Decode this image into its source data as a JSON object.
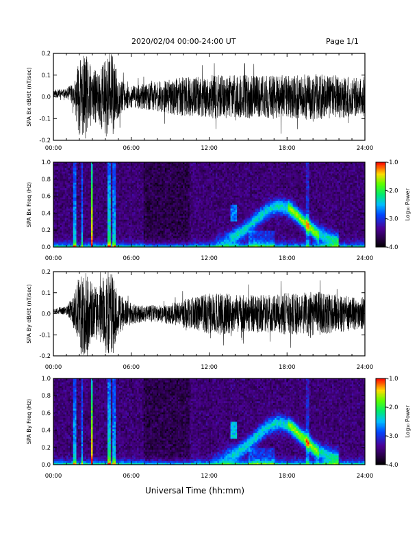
{
  "header": {
    "title": "2020/02/04  00:00-24:00 UT",
    "page": "Page 1/1"
  },
  "xlabel": "Universal Time (hh:mm)",
  "chart_data": [
    {
      "type": "line",
      "panel": "Bx time series",
      "ylabel": "SPA Bx dB/dt (nT/sec)",
      "xlim": [
        0,
        24
      ],
      "ylim": [
        -0.2,
        0.2
      ],
      "xticks": [
        "00:00",
        "06:00",
        "12:00",
        "18:00",
        "24:00"
      ],
      "yticks": [
        "-0.2",
        "-0.1",
        "0.0",
        "0.1",
        "0.2"
      ],
      "envelope": {
        "hours": [
          0,
          1,
          1.6,
          2,
          2.5,
          3,
          3.5,
          4,
          4.5,
          5,
          5.5,
          6,
          7,
          8,
          9,
          10,
          11,
          12,
          13,
          14,
          15,
          16,
          17,
          18,
          19,
          20,
          21,
          22,
          23,
          24
        ],
        "amplitude": [
          0.02,
          0.02,
          0.06,
          0.18,
          0.2,
          0.12,
          0.13,
          0.18,
          0.2,
          0.1,
          0.06,
          0.05,
          0.06,
          0.07,
          0.08,
          0.09,
          0.09,
          0.1,
          0.1,
          0.1,
          0.1,
          0.1,
          0.1,
          0.1,
          0.1,
          0.11,
          0.1,
          0.1,
          0.09,
          0.08
        ]
      }
    },
    {
      "type": "heatmap",
      "panel": "Bx spectrogram",
      "ylabel": "SPA Bx Freq (Hz)",
      "xlim": [
        0,
        24
      ],
      "ylim": [
        0,
        1.0
      ],
      "xticks": [
        "00:00",
        "06:00",
        "12:00",
        "18:00",
        "24:00"
      ],
      "yticks": [
        "0.0",
        "0.2",
        "0.4",
        "0.6",
        "0.8",
        "1.0"
      ],
      "colorbar": {
        "label": "Log₁₀ Power",
        "range": [
          -4.0,
          -1.0
        ],
        "ticks": [
          "-1.0",
          "-2.0",
          "-3.0",
          "-4.0"
        ]
      }
    },
    {
      "type": "line",
      "panel": "By time series",
      "ylabel": "SPA By dB/dt (nT/sec)",
      "xlim": [
        0,
        24
      ],
      "ylim": [
        -0.2,
        0.2
      ],
      "xticks": [
        "00:00",
        "06:00",
        "12:00",
        "18:00",
        "24:00"
      ],
      "yticks": [
        "-0.2",
        "-0.1",
        "0.0",
        "0.1",
        "0.2"
      ],
      "envelope": {
        "hours": [
          0,
          1,
          1.6,
          2,
          2.5,
          3,
          3.5,
          4,
          4.5,
          5,
          5.5,
          6,
          7,
          8,
          9,
          10,
          11,
          12,
          13,
          14,
          15,
          16,
          17,
          18,
          19,
          20,
          21,
          22,
          23,
          24
        ],
        "amplitude": [
          0.015,
          0.02,
          0.08,
          0.2,
          0.2,
          0.14,
          0.12,
          0.2,
          0.2,
          0.1,
          0.07,
          0.05,
          0.04,
          0.04,
          0.05,
          0.07,
          0.08,
          0.1,
          0.1,
          0.09,
          0.09,
          0.09,
          0.09,
          0.1,
          0.1,
          0.11,
          0.1,
          0.09,
          0.08,
          0.07
        ]
      }
    },
    {
      "type": "heatmap",
      "panel": "By spectrogram",
      "ylabel": "SPA By Freq (Hz)",
      "xlim": [
        0,
        24
      ],
      "ylim": [
        0,
        1.0
      ],
      "xticks": [
        "00:00",
        "06:00",
        "12:00",
        "18:00",
        "24:00"
      ],
      "yticks": [
        "0.0",
        "0.2",
        "0.4",
        "0.6",
        "0.8",
        "1.0"
      ],
      "colorbar": {
        "label": "Log₁₀ Power",
        "range": [
          -4.0,
          -1.0
        ],
        "ticks": [
          "-1.0",
          "-2.0",
          "-3.0",
          "-4.0"
        ]
      }
    }
  ]
}
